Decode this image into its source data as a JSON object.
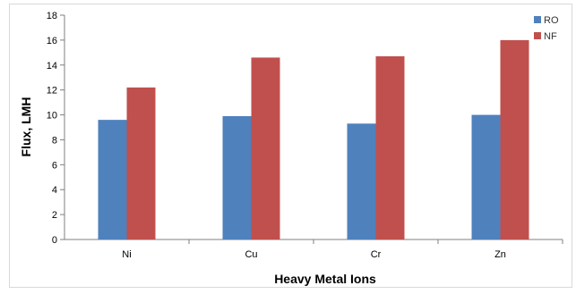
{
  "chart_data": {
    "type": "bar",
    "xlabel": "Heavy Metal Ions",
    "ylabel": "Flux, LMH",
    "categories": [
      "Ni",
      "Cu",
      "Cr",
      "Zn"
    ],
    "series": [
      {
        "name": "RO",
        "values": [
          9.6,
          9.9,
          9.3,
          10.0
        ],
        "color": "#4f81bd"
      },
      {
        "name": "NF",
        "values": [
          12.2,
          14.6,
          14.7,
          16.0
        ],
        "color": "#c0504d"
      }
    ],
    "ylim": [
      0,
      18
    ],
    "yticks": [
      "0",
      "2",
      "4",
      "6",
      "8",
      "10",
      "12",
      "14",
      "16",
      "18"
    ],
    "grid": false,
    "legend_position": "top-right"
  }
}
